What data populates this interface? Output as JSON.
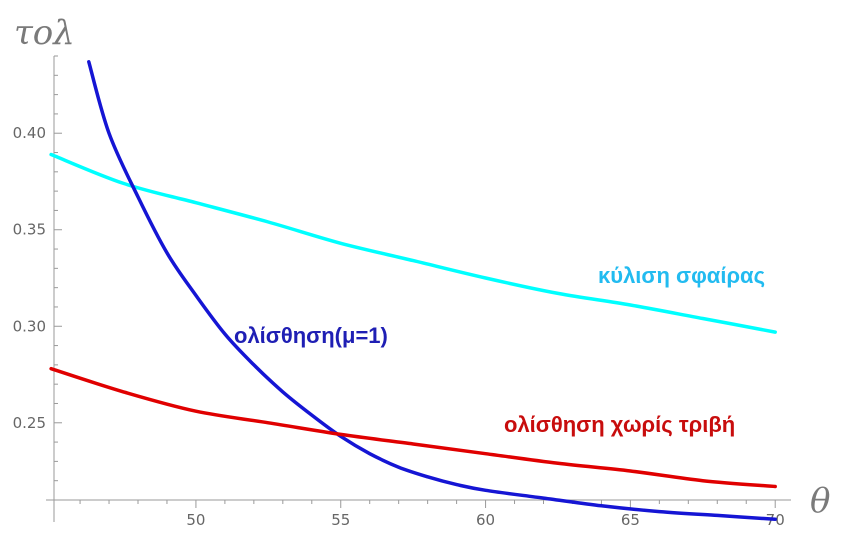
{
  "chart_data": {
    "type": "line",
    "ylabel": "τολ",
    "xlabel": "θ",
    "xlim": [
      45.1,
      70.2
    ],
    "ylim": [
      0.21,
      0.44
    ],
    "x_ticks": [
      50,
      55,
      60,
      65,
      70
    ],
    "y_ticks": [
      0.25,
      0.3,
      0.35,
      0.4
    ],
    "x_tick_labels": [
      "50",
      "55",
      "60",
      "65",
      "70"
    ],
    "y_tick_labels": [
      "0.25",
      "0.30",
      "0.35",
      "0.40"
    ],
    "grid": false,
    "series": [
      {
        "name": "κύλιση σφαίρας",
        "color": "#00ffff",
        "x": [
          45,
          47.5,
          50,
          52.5,
          55,
          57.5,
          60,
          62.5,
          65,
          67.5,
          70
        ],
        "y": [
          0.389,
          0.374,
          0.364,
          0.354,
          0.343,
          0.334,
          0.325,
          0.317,
          0.311,
          0.304,
          0.297
        ]
      },
      {
        "name": "ολίσθηση(μ=1)",
        "color": "#1515d4",
        "x": [
          46.3,
          47,
          48,
          49,
          50,
          51,
          52,
          53,
          54,
          55,
          56,
          57,
          58,
          59,
          60,
          62,
          64,
          66,
          68,
          70
        ],
        "y": [
          0.437,
          0.4,
          0.367,
          0.338,
          0.316,
          0.296,
          0.28,
          0.266,
          0.254,
          0.243,
          0.234,
          0.227,
          0.222,
          0.218,
          0.215,
          0.211,
          0.207,
          0.204,
          0.202,
          0.2
        ]
      },
      {
        "name": "ολίσθηση χωρίς τριβή",
        "color": "#e00000",
        "x": [
          45,
          47.5,
          50,
          52.5,
          55,
          57.5,
          60,
          62.5,
          65,
          67.5,
          70
        ],
        "y": [
          0.278,
          0.266,
          0.256,
          0.25,
          0.244,
          0.239,
          0.234,
          0.229,
          0.225,
          0.22,
          0.217
        ]
      }
    ]
  }
}
